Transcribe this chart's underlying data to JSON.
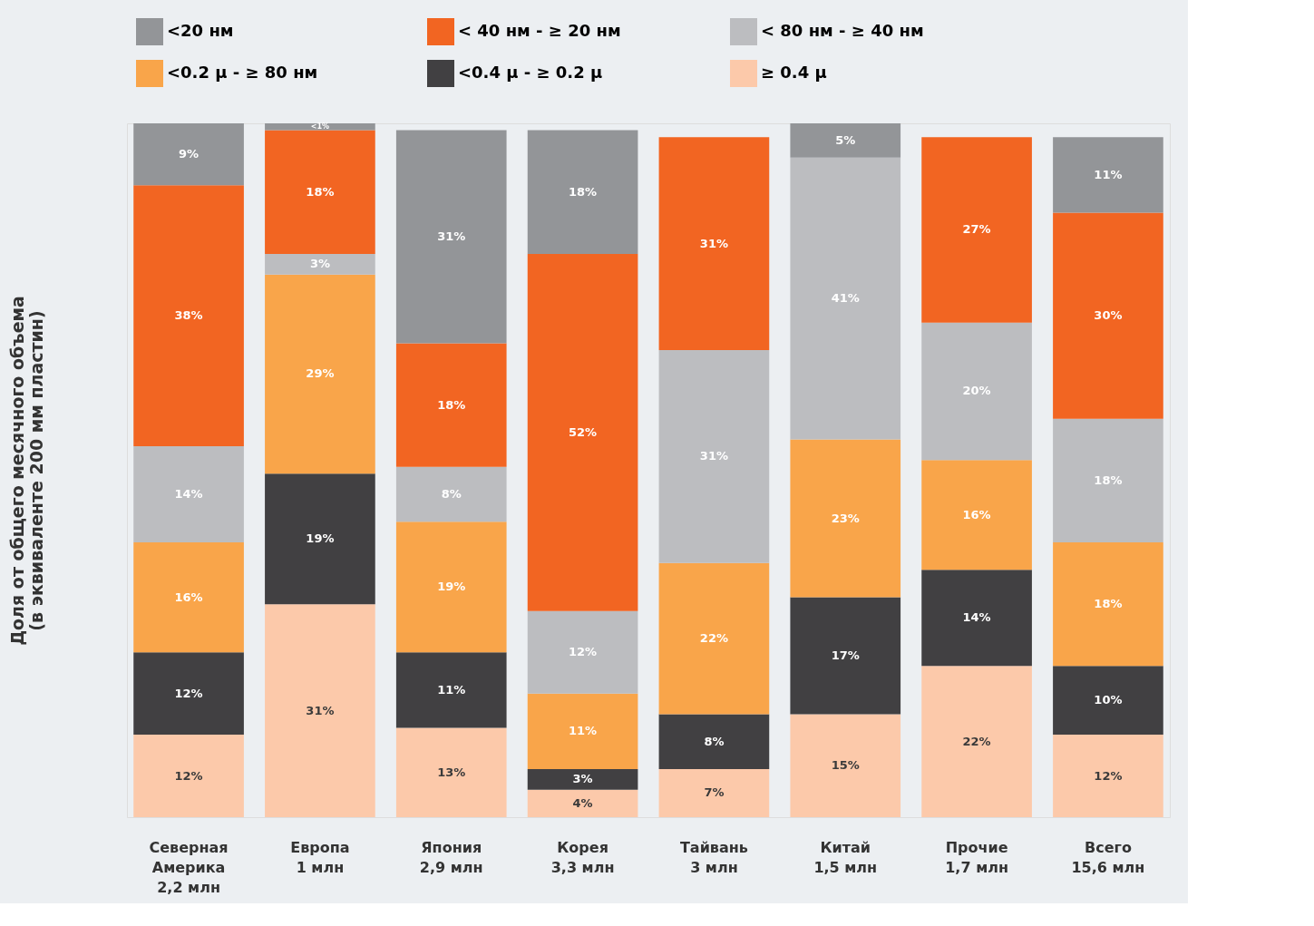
{
  "chart_data": {
    "type": "bar",
    "stacked": true,
    "legend": "top",
    "tick_labels": "x",
    "grid": false,
    "ylabel": "Доля от общего месячного объема\n(в эквиваленте 200 мм пластин)",
    "categories": [
      "Северная\nАмерика\n2,2 млн",
      "Европа\n1 млн",
      "Япония\n2,9 млн",
      "Корея\n3,3 млн",
      "Тайвань\n3 млн",
      "Китай\n1,5 млн",
      "Прочие\n1,7 млн",
      "Всего\n15,6 млн"
    ],
    "series": [
      {
        "name": "≥ 0.4 μ",
        "color": "#fcc9aa",
        "values": [
          12,
          31,
          13,
          4,
          7,
          15,
          22,
          12
        ],
        "value_labels": [
          "12%",
          "31%",
          "13%",
          "4%",
          "7%",
          "15%",
          "22%",
          "12%"
        ]
      },
      {
        "name": "<0.4 μ - ≥ 0.2 μ",
        "color": "#414042",
        "values": [
          12,
          19,
          11,
          3,
          8,
          17,
          14,
          10
        ],
        "value_labels": [
          "12%",
          "19%",
          "11%",
          "3%",
          "8%",
          "17%",
          "14%",
          "10%"
        ]
      },
      {
        "name": "<0.2 μ - ≥ 80 нм",
        "color": "#f9a54a",
        "values": [
          16,
          29,
          19,
          11,
          22,
          23,
          16,
          18
        ],
        "value_labels": [
          "16%",
          "29%",
          "19%",
          "11%",
          "22%",
          "23%",
          "16%",
          "18%"
        ]
      },
      {
        "name": "< 80 нм - ≥ 40 нм",
        "color": "#bcbdc0",
        "values": [
          14,
          3,
          8,
          12,
          31,
          41,
          20,
          18
        ],
        "value_labels": [
          "14%",
          "3%",
          "8%",
          "12%",
          "31%",
          "41%",
          "20%",
          "18%"
        ]
      },
      {
        "name": "< 40 нм - ≥ 20 нм",
        "color": "#f26522",
        "values": [
          38,
          18,
          18,
          52,
          31,
          null,
          27,
          30
        ],
        "value_labels": [
          "38%",
          "18%",
          "18%",
          "52%",
          "31%",
          null,
          "27%",
          "30%"
        ]
      },
      {
        "name": "<20 нм",
        "color": "#939598",
        "values": [
          9,
          1,
          31,
          18,
          null,
          5,
          null,
          11
        ],
        "value_labels": [
          "9%",
          "<1%",
          "31%",
          "18%",
          null,
          "5%",
          null,
          "11%"
        ]
      }
    ]
  }
}
